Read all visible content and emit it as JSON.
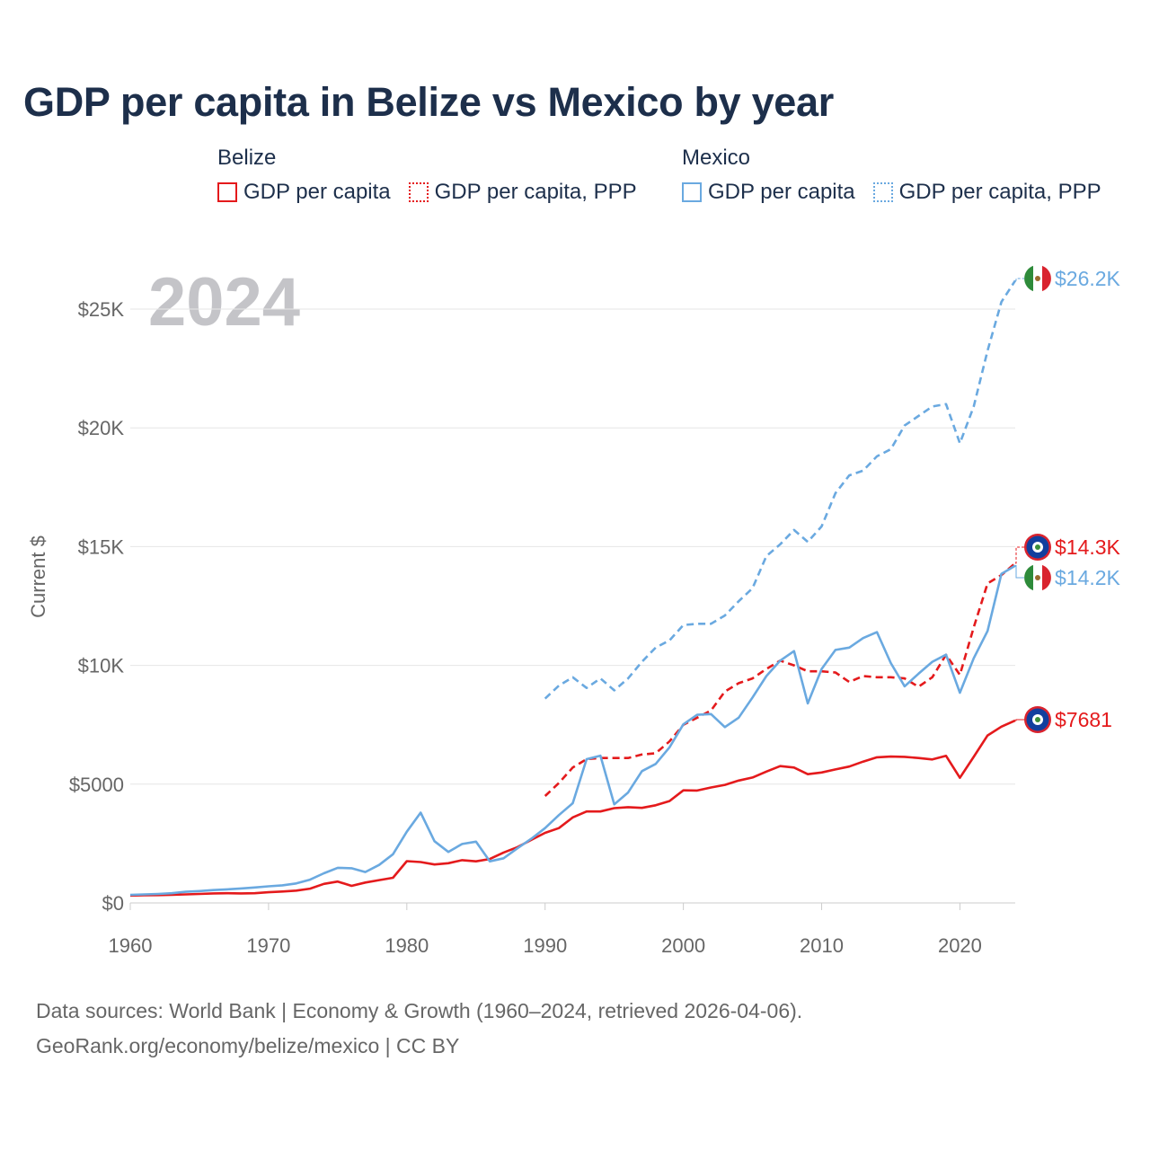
{
  "title": "GDP per capita in Belize vs Mexico by year",
  "legend": {
    "groups": [
      {
        "name": "Belize",
        "items": [
          {
            "label": "GDP per capita",
            "style": "solid",
            "color": "#e41a1c"
          },
          {
            "label": "GDP per capita, PPP",
            "style": "dotted",
            "color": "#e41a1c"
          }
        ]
      },
      {
        "name": "Mexico",
        "items": [
          {
            "label": "GDP per capita",
            "style": "solid",
            "color": "#6aa9e0"
          },
          {
            "label": "GDP per capita, PPP",
            "style": "dotted",
            "color": "#6aa9e0"
          }
        ]
      }
    ]
  },
  "footer": {
    "line1": "Data sources: World Bank | Economy & Growth (1960–2024, retrieved 2026-04-06).",
    "line2": "GeoRank.org/economy/belize/mexico | CC BY"
  },
  "chart_data": {
    "type": "line",
    "year_label": "2024",
    "ylabel": "Current $",
    "xlim": [
      1960,
      2024
    ],
    "ylim": [
      0,
      27000
    ],
    "xticks": [
      1960,
      1970,
      1980,
      1990,
      2000,
      2010,
      2020
    ],
    "xtick_labels": [
      "1960",
      "1970",
      "1980",
      "1990",
      "2000",
      "2010",
      "2020"
    ],
    "yticks": [
      0,
      5000,
      10000,
      15000,
      20000,
      25000
    ],
    "ytick_labels": [
      "$0",
      "$5000",
      "$10K",
      "$15K",
      "$20K",
      "$25K"
    ],
    "grid": true,
    "series": [
      {
        "name": "Belize GDP per capita",
        "country": "Belize",
        "color": "#e41a1c",
        "dash": "solid",
        "x": [
          1960,
          1961,
          1962,
          1963,
          1964,
          1965,
          1966,
          1967,
          1968,
          1969,
          1970,
          1971,
          1972,
          1973,
          1974,
          1975,
          1976,
          1977,
          1978,
          1979,
          1980,
          1981,
          1982,
          1983,
          1984,
          1985,
          1986,
          1987,
          1988,
          1989,
          1990,
          1991,
          1992,
          1993,
          1994,
          1995,
          1996,
          1997,
          1998,
          1999,
          2000,
          2001,
          2002,
          2003,
          2004,
          2005,
          2006,
          2007,
          2008,
          2009,
          2010,
          2011,
          2012,
          2013,
          2014,
          2015,
          2016,
          2017,
          2018,
          2019,
          2020,
          2021,
          2022,
          2023,
          2024
        ],
        "values": [
          310,
          320,
          330,
          345,
          360,
          380,
          400,
          410,
          400,
          410,
          450,
          480,
          520,
          600,
          800,
          900,
          720,
          860,
          960,
          1060,
          1760,
          1720,
          1620,
          1670,
          1800,
          1750,
          1850,
          2120,
          2350,
          2650,
          2950,
          3150,
          3600,
          3850,
          3850,
          3990,
          4030,
          4000,
          4110,
          4290,
          4740,
          4730,
          4860,
          4970,
          5150,
          5280,
          5530,
          5760,
          5700,
          5420,
          5490,
          5620,
          5740,
          5950,
          6130,
          6160,
          6150,
          6100,
          6040,
          6190,
          5270,
          6150,
          7050,
          7420,
          7681
        ],
        "end_label": "$7681"
      },
      {
        "name": "Belize GDP per capita, PPP",
        "country": "Belize",
        "color": "#e41a1c",
        "dash": "dashed",
        "x": [
          1990,
          1991,
          1992,
          1993,
          1994,
          1995,
          1996,
          1997,
          1998,
          1999,
          2000,
          2001,
          2002,
          2003,
          2004,
          2005,
          2006,
          2007,
          2008,
          2009,
          2010,
          2011,
          2012,
          2013,
          2014,
          2015,
          2016,
          2017,
          2018,
          2019,
          2020,
          2021,
          2022,
          2023,
          2024
        ],
        "values": [
          4500,
          5050,
          5700,
          6050,
          6100,
          6100,
          6100,
          6250,
          6300,
          6800,
          7500,
          7800,
          8100,
          8900,
          9250,
          9450,
          9850,
          10200,
          10000,
          9750,
          9750,
          9700,
          9300,
          9550,
          9500,
          9500,
          9450,
          9100,
          9500,
          10450,
          9600,
          11600,
          13450,
          13800,
          14300
        ],
        "end_label": "$14.3K"
      },
      {
        "name": "Mexico GDP per capita",
        "country": "Mexico",
        "color": "#6aa9e0",
        "dash": "solid",
        "x": [
          1960,
          1961,
          1962,
          1963,
          1964,
          1965,
          1966,
          1967,
          1968,
          1969,
          1970,
          1971,
          1972,
          1973,
          1974,
          1975,
          1976,
          1977,
          1978,
          1979,
          1980,
          1981,
          1982,
          1983,
          1984,
          1985,
          1986,
          1987,
          1988,
          1989,
          1990,
          1991,
          1992,
          1993,
          1994,
          1995,
          1996,
          1997,
          1998,
          1999,
          2000,
          2001,
          2002,
          2003,
          2004,
          2005,
          2006,
          2007,
          2008,
          2009,
          2010,
          2011,
          2012,
          2013,
          2014,
          2015,
          2016,
          2017,
          2018,
          2019,
          2020,
          2021,
          2022,
          2023,
          2024
        ],
        "values": [
          340,
          360,
          380,
          410,
          470,
          500,
          540,
          570,
          610,
          650,
          700,
          740,
          820,
          980,
          1250,
          1480,
          1460,
          1300,
          1600,
          2050,
          3000,
          3800,
          2600,
          2150,
          2480,
          2580,
          1750,
          1880,
          2300,
          2700,
          3150,
          3700,
          4200,
          6050,
          6200,
          4150,
          4650,
          5550,
          5850,
          6550,
          7520,
          7920,
          7950,
          7400,
          7800,
          8650,
          9550,
          10200,
          10600,
          8400,
          9850,
          10650,
          10750,
          11150,
          11400,
          10100,
          9120,
          9650,
          10150,
          10450,
          8850,
          10300,
          11450,
          13850,
          14200
        ],
        "end_label": "$14.2K"
      },
      {
        "name": "Mexico GDP per capita, PPP",
        "country": "Mexico",
        "color": "#6aa9e0",
        "dash": "dashed",
        "x": [
          1990,
          1991,
          1992,
          1993,
          1994,
          1995,
          1996,
          1997,
          1998,
          1999,
          2000,
          2001,
          2002,
          2003,
          2004,
          2005,
          2006,
          2007,
          2008,
          2009,
          2010,
          2011,
          2012,
          2013,
          2014,
          2015,
          2016,
          2017,
          2018,
          2019,
          2020,
          2021,
          2022,
          2023,
          2024
        ],
        "values": [
          8600,
          9150,
          9500,
          9050,
          9450,
          8950,
          9450,
          10150,
          10750,
          11050,
          11700,
          11750,
          11750,
          12100,
          12700,
          13250,
          14600,
          15100,
          15700,
          15200,
          15850,
          17250,
          18000,
          18200,
          18800,
          19100,
          20100,
          20500,
          20900,
          21000,
          19350,
          20900,
          23250,
          25300,
          26200
        ],
        "end_label": "$26.2K"
      }
    ]
  }
}
